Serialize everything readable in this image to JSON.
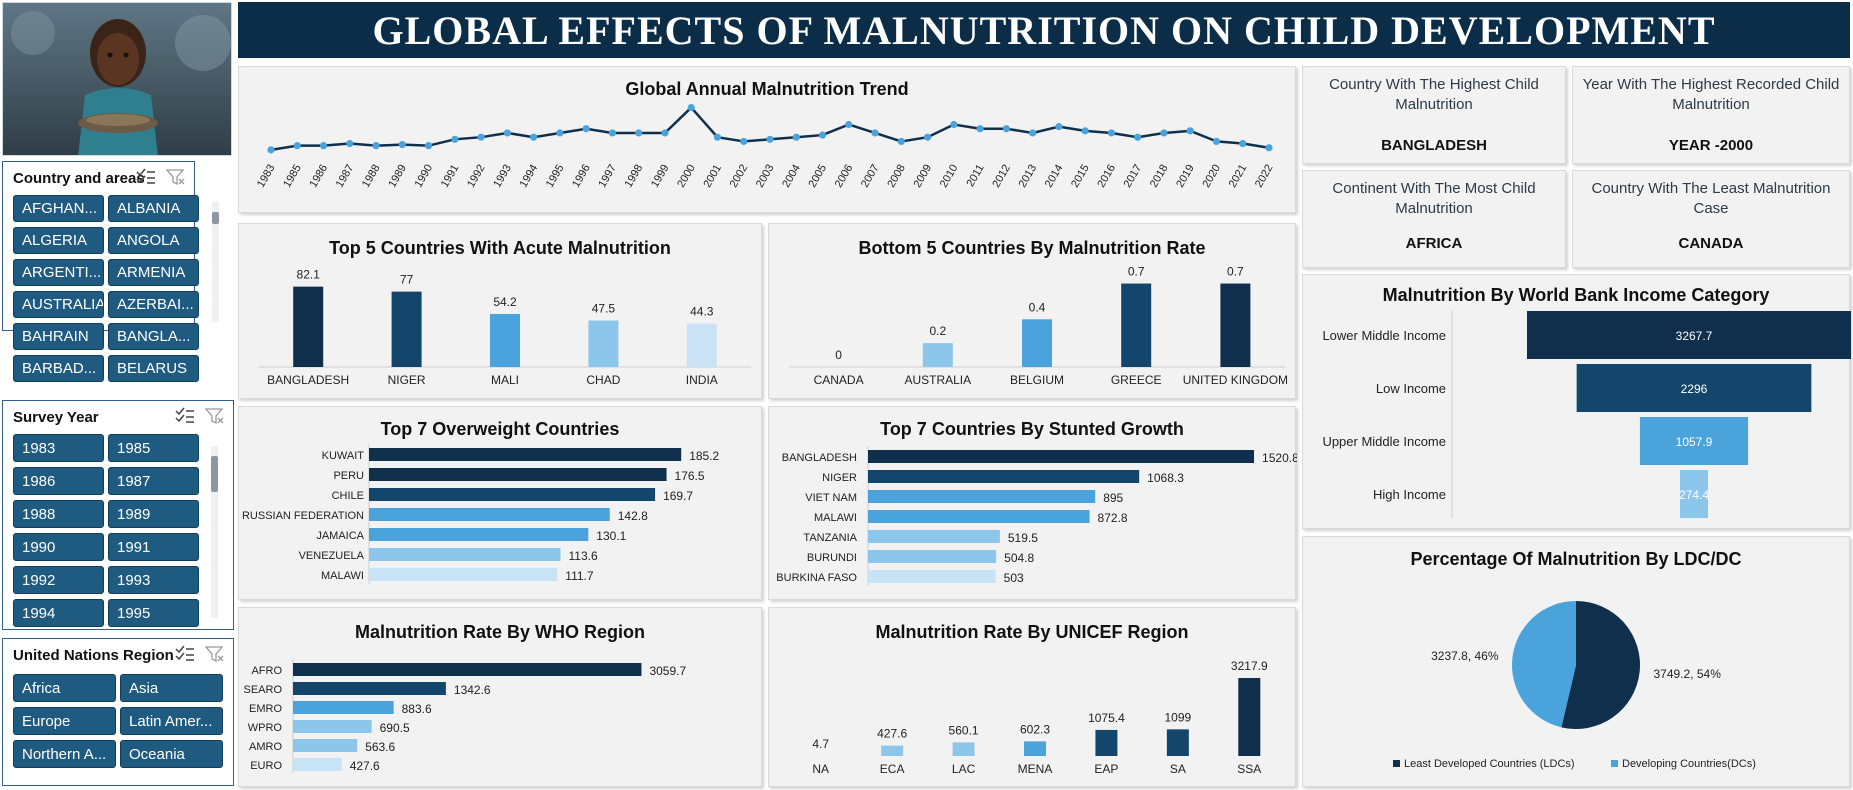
{
  "title": "GLOBAL EFFECTS OF MALNUTRITION ON CHILD DEVELOPMENT",
  "colors": {
    "navy": "#0c2d48",
    "dark": "#0f2f4d",
    "mid": "#14466c",
    "blue": "#4aa3db",
    "light": "#8cc6ea",
    "pale": "#c7e3f5"
  },
  "slicers": {
    "country": {
      "title": "Country and areas",
      "items": [
        "AFGHAN...",
        "ALBANIA",
        "ALGERIA",
        "ANGOLA",
        "ARGENTI...",
        "ARMENIA",
        "AUSTRALIA",
        "AZERBAI...",
        "BAHRAIN",
        "BANGLA...",
        "BARBAD...",
        "BELARUS"
      ]
    },
    "year": {
      "title": "Survey Year",
      "items": [
        "1983",
        "1985",
        "1986",
        "1987",
        "1988",
        "1989",
        "1990",
        "1991",
        "1992",
        "1993",
        "1994",
        "1995"
      ]
    },
    "region": {
      "title": "United Nations Region",
      "items": [
        "Africa",
        "Asia",
        "Europe",
        "Latin Amer...",
        "Northern A...",
        "Oceania"
      ]
    }
  },
  "kpis": [
    {
      "label": "Country With The Highest Child Malnutrition",
      "value": "BANGLADESH"
    },
    {
      "label": "Year With The Highest Recorded Child Malnutrition",
      "value": "YEAR -2000"
    },
    {
      "label": "Continent With The Most Child Malnutrition",
      "value": "AFRICA"
    },
    {
      "label": "Country With The Least Malnutrition Case",
      "value": "CANADA"
    }
  ],
  "chart_data": [
    {
      "id": "trend",
      "type": "line",
      "title": "Global Annual Malnutrition Trend",
      "categories": [
        "1983",
        "1985",
        "1986",
        "1987",
        "1988",
        "1989",
        "1990",
        "1991",
        "1992",
        "1993",
        "1994",
        "1995",
        "1996",
        "1997",
        "1998",
        "1999",
        "2000",
        "2001",
        "2002",
        "2003",
        "2004",
        "2005",
        "2006",
        "2007",
        "2008",
        "2009",
        "2010",
        "2011",
        "2012",
        "2013",
        "2014",
        "2015",
        "2016",
        "2017",
        "2018",
        "2019",
        "2020",
        "2021",
        "2022"
      ],
      "values": [
        1,
        3,
        3,
        4,
        3,
        3.5,
        3,
        6,
        7,
        9,
        7,
        9,
        11,
        9,
        9,
        9,
        21,
        7,
        5,
        6,
        7,
        8,
        13,
        9,
        5,
        7,
        13,
        11,
        11,
        9,
        12,
        10,
        9,
        7,
        9,
        10,
        5,
        4,
        2
      ],
      "ylim": [
        0,
        26
      ],
      "grid": false
    },
    {
      "id": "top5",
      "type": "bar",
      "title": "Top 5 Countries With Acute Malnutrition",
      "categories": [
        "BANGLADESH",
        "NIGER",
        "MALI",
        "CHAD",
        "INDIA"
      ],
      "values": [
        82.1,
        77,
        54.2,
        47.5,
        44.3
      ],
      "labels": [
        "82.1",
        "77",
        "54.2",
        "47.5",
        "44.3"
      ],
      "colors": [
        "#0f2f4d",
        "#14466c",
        "#4aa3db",
        "#8cc6ea",
        "#c7e3f5"
      ],
      "ylim": [
        0,
        95
      ]
    },
    {
      "id": "bottom5",
      "type": "bar",
      "title": "Bottom 5 Countries By Malnutrition Rate",
      "categories": [
        "CANADA",
        "AUSTRALIA",
        "BELGIUM",
        "GREECE",
        "UNITED KINGDOM"
      ],
      "values": [
        0,
        0.2,
        0.4,
        0.7,
        0.7
      ],
      "labels": [
        "0",
        "0.2",
        "0.4",
        "0.7",
        "0.7"
      ],
      "colors": [
        "#c7e3f5",
        "#8cc6ea",
        "#4aa3db",
        "#14466c",
        "#0f2f4d"
      ],
      "ylim": [
        0,
        0.78
      ]
    },
    {
      "id": "overweight",
      "type": "bar",
      "orientation": "horizontal",
      "title": "Top 7 Overweight Countries",
      "categories": [
        "KUWAIT",
        "PERU",
        "CHILE",
        "RUSSIAN FEDERATION",
        "JAMAICA",
        "VENEZUELA",
        "MALAWI"
      ],
      "values": [
        185.2,
        176.5,
        169.7,
        142.8,
        130.1,
        113.6,
        111.7
      ],
      "labels": [
        "185.2",
        "176.5",
        "169.7",
        "142.8",
        "130.1",
        "113.6",
        "111.7"
      ],
      "colors": [
        "#0f2f4d",
        "#0f2f4d",
        "#14466c",
        "#4aa3db",
        "#4aa3db",
        "#8cc6ea",
        "#c7e3f5"
      ],
      "xlim": [
        0,
        210
      ]
    },
    {
      "id": "stunted",
      "type": "bar",
      "orientation": "horizontal",
      "title": "Top 7 Countries By Stunted Growth",
      "categories": [
        "BANGLADESH",
        "NIGER",
        "VIET NAM",
        "MALAWI",
        "TANZANIA",
        "BURUNDI",
        "BURKINA FASO"
      ],
      "values": [
        1520.8,
        1068.3,
        895,
        872.8,
        519.5,
        504.8,
        503
      ],
      "labels": [
        "1520.8",
        "1068.3",
        "895",
        "872.8",
        "519.5",
        "504.8",
        "503"
      ],
      "colors": [
        "#0f2f4d",
        "#14466c",
        "#4aa3db",
        "#4aa3db",
        "#8cc6ea",
        "#8cc6ea",
        "#c7e3f5"
      ],
      "xlim": [
        0,
        1560
      ]
    },
    {
      "id": "who",
      "type": "bar",
      "orientation": "horizontal",
      "title": "Malnutrition Rate By WHO Region",
      "categories": [
        "AFRO",
        "SEARO",
        "EMRO",
        "WPRO",
        "AMRO",
        "EURO"
      ],
      "values": [
        3059.7,
        1342.6,
        883.6,
        690.5,
        563.6,
        427.6
      ],
      "labels": [
        "3059.7",
        "1342.6",
        "883.6",
        "690.5",
        "563.6",
        "427.6"
      ],
      "colors": [
        "#0f2f4d",
        "#14466c",
        "#4aa3db",
        "#8cc6ea",
        "#8cc6ea",
        "#c7e3f5"
      ],
      "xlim": [
        0,
        3600
      ]
    },
    {
      "id": "unicef",
      "type": "bar",
      "title": "Malnutrition Rate By UNICEF Region",
      "categories": [
        "NA",
        "ECA",
        "LAC",
        "MENA",
        "EAP",
        "SA",
        "SSA"
      ],
      "values": [
        4.7,
        427.6,
        560.1,
        602.3,
        1075.4,
        1099,
        3217.9
      ],
      "labels": [
        "4.7",
        "427.6",
        "560.1",
        "602.3",
        "1075.4",
        "1099",
        "3217.9"
      ],
      "colors": [
        "#c7e3f5",
        "#8cc6ea",
        "#8cc6ea",
        "#4aa3db",
        "#14466c",
        "#14466c",
        "#0f2f4d"
      ],
      "ylim": [
        0,
        3217.9
      ]
    },
    {
      "id": "income",
      "type": "bar",
      "orientation": "funnel",
      "title": "Malnutrition By World Bank Income Category",
      "categories": [
        "Lower Middle Income",
        "Low Income",
        "Upper Middle Income",
        "High Income"
      ],
      "values": [
        3267.7,
        2296,
        1057.9,
        274.4
      ],
      "labels": [
        "3267.7",
        "2296",
        "1057.9",
        "274.4"
      ],
      "colors": [
        "#0f2f4d",
        "#14466c",
        "#4aa3db",
        "#8cc6ea"
      ],
      "xlim": [
        0,
        3267.7
      ]
    },
    {
      "id": "ldc",
      "type": "pie",
      "title": "Percentage Of Malnutrition By LDC/DC",
      "categories": [
        "Least Developed Countries (LDCs)",
        "Developing Countries(DCs)"
      ],
      "values": [
        3749.2,
        3237.8
      ],
      "labels": [
        "3749.2, 54%",
        "3237.8, 46%"
      ],
      "colors": [
        "#0f2f4d",
        "#4aa3db"
      ],
      "legend": "bottom"
    }
  ]
}
